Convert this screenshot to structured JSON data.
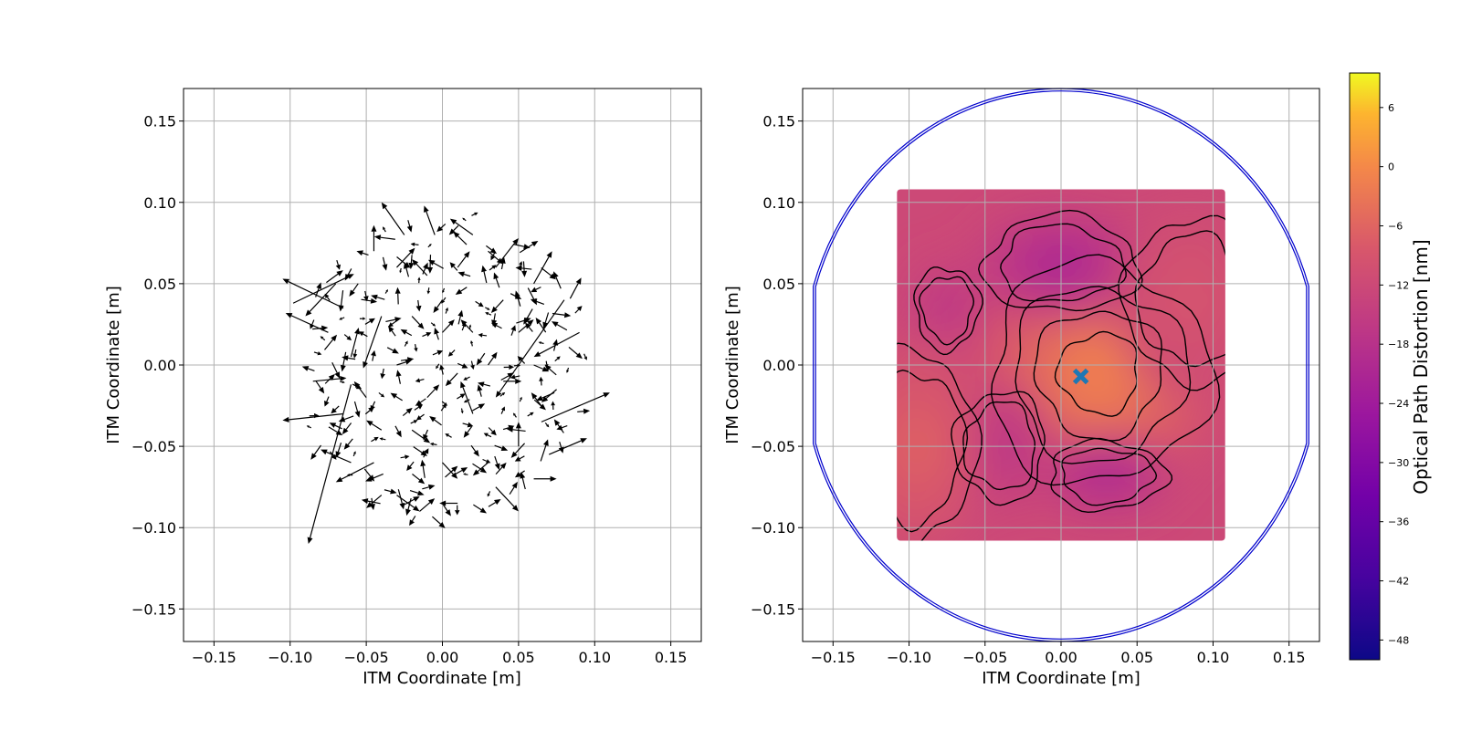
{
  "chart_data": [
    {
      "type": "quiver",
      "title": "",
      "xlabel": "ITM Coordinate [m]",
      "ylabel": "ITM Coordinate [m]",
      "xlim": [
        -0.17,
        0.17
      ],
      "ylim": [
        -0.17,
        0.17
      ],
      "xticks": [
        -0.15,
        -0.1,
        -0.05,
        0.0,
        0.05,
        0.1,
        0.15
      ],
      "yticks": [
        -0.15,
        -0.1,
        -0.05,
        0.0,
        0.05,
        0.1,
        0.15
      ],
      "xtick_labels": [
        "−0.15",
        "−0.10",
        "−0.05",
        "0.00",
        "0.05",
        "0.10",
        "0.15"
      ],
      "ytick_labels": [
        "−0.15",
        "−0.10",
        "−0.05",
        "0.00",
        "0.05",
        "0.10",
        "0.15"
      ],
      "grid": true,
      "arrow_color": "#000000",
      "field_extent": {
        "center": [
          0.0,
          0.0
        ],
        "radius": 0.095
      },
      "arrows": [
        {
          "x": -0.098,
          "y": 0.038,
          "u": 0.04,
          "v": 0.018
        },
        {
          "x": -0.07,
          "y": 0.05,
          "u": -0.02,
          "v": -0.02
        },
        {
          "x": -0.065,
          "y": 0.035,
          "u": -0.04,
          "v": 0.018
        },
        {
          "x": -0.075,
          "y": 0.02,
          "u": -0.028,
          "v": 0.012
        },
        {
          "x": -0.06,
          "y": 0.005,
          "u": 0.005,
          "v": 0.018
        },
        {
          "x": -0.085,
          "y": -0.01,
          "u": 0.022,
          "v": 0.002
        },
        {
          "x": -0.065,
          "y": -0.03,
          "u": -0.04,
          "v": -0.004
        },
        {
          "x": -0.06,
          "y": -0.012,
          "u": -0.028,
          "v": -0.098
        },
        {
          "x": -0.06,
          "y": -0.06,
          "u": -0.02,
          "v": 0.008
        },
        {
          "x": -0.045,
          "y": -0.06,
          "u": -0.025,
          "v": -0.012
        },
        {
          "x": -0.04,
          "y": -0.08,
          "u": -0.01,
          "v": -0.008
        },
        {
          "x": -0.03,
          "y": -0.08,
          "u": 0.015,
          "v": -0.01
        },
        {
          "x": -0.015,
          "y": -0.09,
          "u": 0.01,
          "v": 0.008
        },
        {
          "x": 0.01,
          "y": -0.085,
          "u": -0.012,
          "v": 0.0
        },
        {
          "x": 0.035,
          "y": -0.075,
          "u": 0.015,
          "v": -0.015
        },
        {
          "x": 0.06,
          "y": -0.07,
          "u": 0.015,
          "v": 0.0
        },
        {
          "x": 0.07,
          "y": -0.055,
          "u": 0.025,
          "v": 0.01
        },
        {
          "x": 0.065,
          "y": -0.035,
          "u": 0.045,
          "v": 0.018
        },
        {
          "x": 0.075,
          "y": -0.015,
          "u": -0.01,
          "v": -0.008
        },
        {
          "x": 0.09,
          "y": 0.02,
          "u": -0.03,
          "v": -0.015
        },
        {
          "x": 0.08,
          "y": 0.04,
          "u": -0.045,
          "v": -0.06
        },
        {
          "x": 0.06,
          "y": 0.05,
          "u": 0.012,
          "v": 0.02
        },
        {
          "x": 0.035,
          "y": 0.06,
          "u": 0.015,
          "v": 0.018
        },
        {
          "x": 0.02,
          "y": 0.08,
          "u": -0.015,
          "v": 0.01
        },
        {
          "x": -0.005,
          "y": 0.08,
          "u": -0.007,
          "v": 0.018
        },
        {
          "x": -0.025,
          "y": 0.08,
          "u": -0.015,
          "v": 0.02
        },
        {
          "x": -0.045,
          "y": 0.07,
          "u": 0.0,
          "v": 0.016
        },
        {
          "x": -0.03,
          "y": 0.06,
          "u": 0.012,
          "v": 0.012
        },
        {
          "x": -0.01,
          "y": 0.055,
          "u": -0.01,
          "v": 0.01
        },
        {
          "x": 0.01,
          "y": 0.06,
          "u": 0.008,
          "v": 0.01
        },
        {
          "x": 0.04,
          "y": 0.04,
          "u": -0.008,
          "v": -0.008
        },
        {
          "x": 0.05,
          "y": 0.02,
          "u": 0.01,
          "v": 0.008
        },
        {
          "x": -0.04,
          "y": 0.03,
          "u": -0.012,
          "v": -0.032
        },
        {
          "x": -0.02,
          "y": 0.03,
          "u": 0.008,
          "v": -0.008
        },
        {
          "x": 0.0,
          "y": 0.02,
          "u": 0.008,
          "v": 0.008
        },
        {
          "x": 0.02,
          "y": 0.02,
          "u": -0.008,
          "v": 0.008
        },
        {
          "x": -0.03,
          "y": 0.0,
          "u": 0.01,
          "v": 0.003
        },
        {
          "x": 0.01,
          "y": -0.005,
          "u": -0.008,
          "v": -0.008
        },
        {
          "x": 0.04,
          "y": -0.01,
          "u": 0.012,
          "v": 0.0
        },
        {
          "x": 0.02,
          "y": -0.03,
          "u": -0.008,
          "v": 0.02
        },
        {
          "x": 0.05,
          "y": -0.05,
          "u": 0.0,
          "v": 0.015
        },
        {
          "x": -0.02,
          "y": -0.04,
          "u": 0.012,
          "v": -0.008
        },
        {
          "x": -0.04,
          "y": -0.04,
          "u": -0.01,
          "v": 0.006
        },
        {
          "x": 0.0,
          "y": -0.06,
          "u": 0.01,
          "v": -0.01
        },
        {
          "x": 0.03,
          "y": -0.06,
          "u": -0.01,
          "v": -0.008
        },
        {
          "x": -0.01,
          "y": -0.02,
          "u": 0.008,
          "v": 0.008
        },
        {
          "x": 0.03,
          "y": 0.0,
          "u": 0.006,
          "v": 0.008
        },
        {
          "x": -0.05,
          "y": -0.02,
          "u": -0.008,
          "v": 0.01
        },
        {
          "x": 0.06,
          "y": 0.0,
          "u": 0.01,
          "v": -0.004
        },
        {
          "x": 0.0,
          "y": 0.04,
          "u": -0.006,
          "v": -0.008
        },
        {
          "x": 0.03,
          "y": 0.07,
          "u": 0.01,
          "v": -0.008
        }
      ]
    },
    {
      "type": "heatmap",
      "title": "",
      "xlabel": "ITM Coordinate [m]",
      "ylabel": "ITM Coordinate [m]",
      "xlim": [
        -0.17,
        0.17
      ],
      "ylim": [
        -0.17,
        0.17
      ],
      "xticks": [
        -0.15,
        -0.1,
        -0.05,
        0.0,
        0.05,
        0.1,
        0.15
      ],
      "yticks": [
        -0.15,
        -0.1,
        -0.05,
        0.0,
        0.05,
        0.1,
        0.15
      ],
      "xtick_labels": [
        "−0.15",
        "−0.10",
        "−0.05",
        "0.00",
        "0.05",
        "0.10",
        "0.15"
      ],
      "ytick_labels": [
        "−0.15",
        "−0.10",
        "−0.05",
        "0.00",
        "0.05",
        "0.10",
        "0.15"
      ],
      "grid": true,
      "colormap": "plasma",
      "data_extent": {
        "x": [
          -0.108,
          0.108
        ],
        "y": [
          -0.108,
          0.108
        ]
      },
      "background_value": -12,
      "features": [
        {
          "kind": "high",
          "x": 0.025,
          "y": -0.005,
          "rx": 0.085,
          "ry": 0.08,
          "peak": -1
        },
        {
          "kind": "low",
          "x": 0.0,
          "y": 0.062,
          "rx": 0.06,
          "ry": 0.035,
          "peak": -22
        },
        {
          "kind": "low",
          "x": 0.03,
          "y": -0.068,
          "rx": 0.045,
          "ry": 0.025,
          "peak": -22
        },
        {
          "kind": "low",
          "x": -0.04,
          "y": -0.05,
          "rx": 0.035,
          "ry": 0.04,
          "peak": -18
        },
        {
          "kind": "low",
          "x": -0.075,
          "y": 0.035,
          "rx": 0.025,
          "ry": 0.03,
          "peak": -18
        },
        {
          "kind": "high",
          "x": -0.095,
          "y": -0.05,
          "rx": 0.045,
          "ry": 0.07,
          "peak": -6
        },
        {
          "kind": "high",
          "x": 0.085,
          "y": 0.04,
          "rx": 0.05,
          "ry": 0.06,
          "peak": -9
        }
      ],
      "contour_levels": [
        -18,
        -15,
        -12,
        -9,
        -6,
        -3
      ],
      "contour_color": "#000000",
      "aperture": {
        "type": "circle-flats",
        "radius": 0.17,
        "flat_x": 0.163,
        "color": "#0000cc"
      },
      "marker": {
        "shape": "X",
        "x": 0.013,
        "y": -0.007,
        "color": "#1f77b4"
      },
      "colorbar": {
        "label": "Optical Path Distortion [nm]",
        "vmin": -50,
        "vmax": 9.5,
        "ticks": [
          6,
          0,
          -6,
          -12,
          -18,
          -24,
          -30,
          -36,
          -42,
          -48
        ],
        "tick_labels": [
          "6",
          "0",
          "−6",
          "−12",
          "−18",
          "−24",
          "−30",
          "−36",
          "−42",
          "−48"
        ]
      }
    }
  ]
}
